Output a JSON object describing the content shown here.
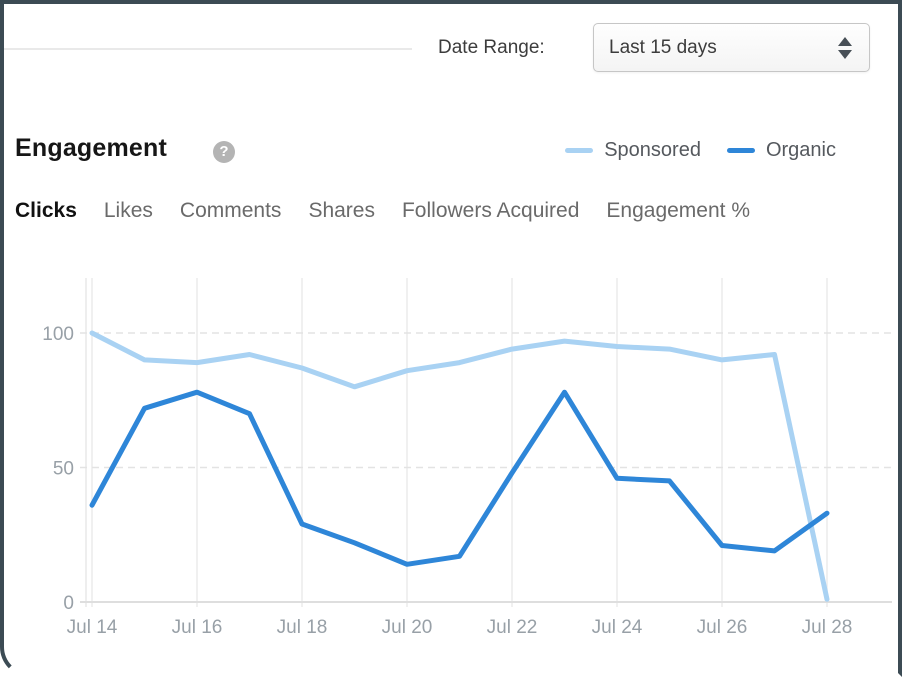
{
  "toolbar": {
    "date_range_label": "Date Range:",
    "date_range_value": "Last 15 days"
  },
  "header": {
    "title": "Engagement",
    "help_icon": "question-mark",
    "legend": [
      {
        "label": "Sponsored",
        "color": "#a9d2f3"
      },
      {
        "label": "Organic",
        "color": "#2e86d8"
      }
    ]
  },
  "tabs": [
    {
      "label": "Clicks",
      "active": true
    },
    {
      "label": "Likes",
      "active": false
    },
    {
      "label": "Comments",
      "active": false
    },
    {
      "label": "Shares",
      "active": false
    },
    {
      "label": "Followers Acquired",
      "active": false
    },
    {
      "label": "Engagement %",
      "active": false
    }
  ],
  "chart_data": {
    "type": "line",
    "title": "Engagement",
    "x": [
      "Jul 14",
      "Jul 15",
      "Jul 16",
      "Jul 17",
      "Jul 18",
      "Jul 19",
      "Jul 20",
      "Jul 21",
      "Jul 22",
      "Jul 23",
      "Jul 24",
      "Jul 25",
      "Jul 26",
      "Jul 27",
      "Jul 28"
    ],
    "x_tick_labels": [
      "Jul 14",
      "Jul 16",
      "Jul 18",
      "Jul 20",
      "Jul 22",
      "Jul 24",
      "Jul 26",
      "Jul 28"
    ],
    "series": [
      {
        "name": "Sponsored",
        "color": "#a9d2f3",
        "values": [
          100,
          90,
          89,
          92,
          87,
          80,
          86,
          89,
          94,
          97,
          95,
          94,
          90,
          92,
          1
        ]
      },
      {
        "name": "Organic",
        "color": "#2e86d8",
        "values": [
          36,
          72,
          78,
          70,
          29,
          22,
          14,
          17,
          48,
          78,
          46,
          45,
          21,
          19,
          33
        ]
      }
    ],
    "xlabel": "",
    "ylabel": "",
    "ylim": [
      0,
      100
    ],
    "yticks": [
      0,
      50,
      100
    ],
    "grid": {
      "vertical": "solid light at every other day",
      "horizontal": "dashed at 50 and 100, solid at 0"
    },
    "legend_position": "top-right"
  }
}
